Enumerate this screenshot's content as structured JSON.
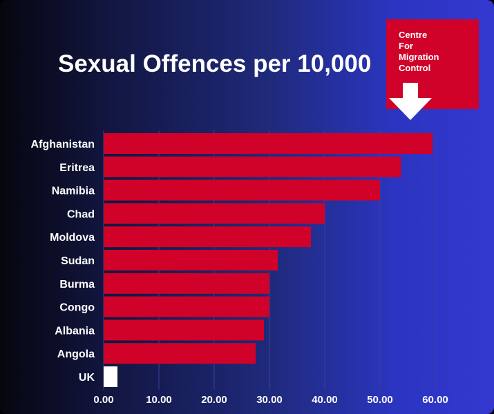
{
  "title": "Sexual Offences per 10,000",
  "logo": {
    "lines": [
      "Centre",
      "For",
      "Migration",
      "Control"
    ]
  },
  "colors": {
    "bar": "#d0022a",
    "highlight_bar": "#ffffff",
    "gridline": "#3a3f9a",
    "text": "#ffffff"
  },
  "chart_data": {
    "type": "bar",
    "orientation": "horizontal",
    "title": "Sexual Offences per 10,000",
    "xlabel": "",
    "ylabel": "",
    "categories": [
      "Afghanistan",
      "Eritrea",
      "Namibia",
      "Chad",
      "Moldova",
      "Sudan",
      "Burma",
      "Congo",
      "Albania",
      "Angola",
      "UK"
    ],
    "values": [
      59.5,
      53.8,
      50.0,
      40.0,
      37.5,
      31.5,
      30.0,
      30.0,
      29.0,
      27.5,
      2.5
    ],
    "highlight": "UK",
    "xlim": [
      0,
      60
    ],
    "xticks": [
      "0.00",
      "10.00",
      "20.00",
      "30.00",
      "40.00",
      "50.00",
      "60.00"
    ],
    "xtick_values": [
      0,
      10,
      20,
      30,
      40,
      50,
      60
    ],
    "grid": true
  }
}
